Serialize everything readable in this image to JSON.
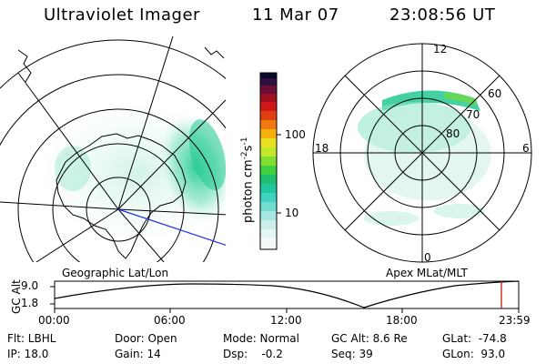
{
  "header": {
    "title": "Ultraviolet Imager",
    "date": "11 Mar 07",
    "time": "23:08:56 UT"
  },
  "colorbar": {
    "unit_label": "photon cm",
    "unit_sup1": "-2",
    "unit_s": "s",
    "unit_sup2": "-1",
    "ticks": [
      "100",
      "10"
    ]
  },
  "left_map": {
    "caption": "Geographic Lat/Lon"
  },
  "right_map": {
    "caption": "Apex MLat/MLT",
    "mlt_labels": {
      "top": "12",
      "left": "18",
      "right": "6",
      "bottom": "0"
    },
    "lat_labels": [
      "60",
      "70",
      "80"
    ]
  },
  "altitude_plot": {
    "y_title": "GC Alt",
    "y_ticks": [
      "9.0",
      "1.8"
    ],
    "x_ticks": [
      "00:00",
      "06:00",
      "12:00",
      "18:00",
      "23:59"
    ]
  },
  "info": {
    "flt": "Flt: LBHL",
    "ip": "IP: 18.0",
    "door": "Door: Open",
    "gain": "Gain: 14",
    "mode": "Mode: Normal",
    "dsp": "Dsp:    -0.2",
    "gcalt": "GC Alt: 8.6 Re",
    "seq": "Seq: 39",
    "glat": "GLat:  -74.8",
    "glon": "GLon:  93.0"
  },
  "colors": {
    "aurora_green": "#22c994",
    "aurora_light": "#8ce6c6",
    "track_blue": "#2030e0",
    "marker_red": "#cc0000"
  }
}
